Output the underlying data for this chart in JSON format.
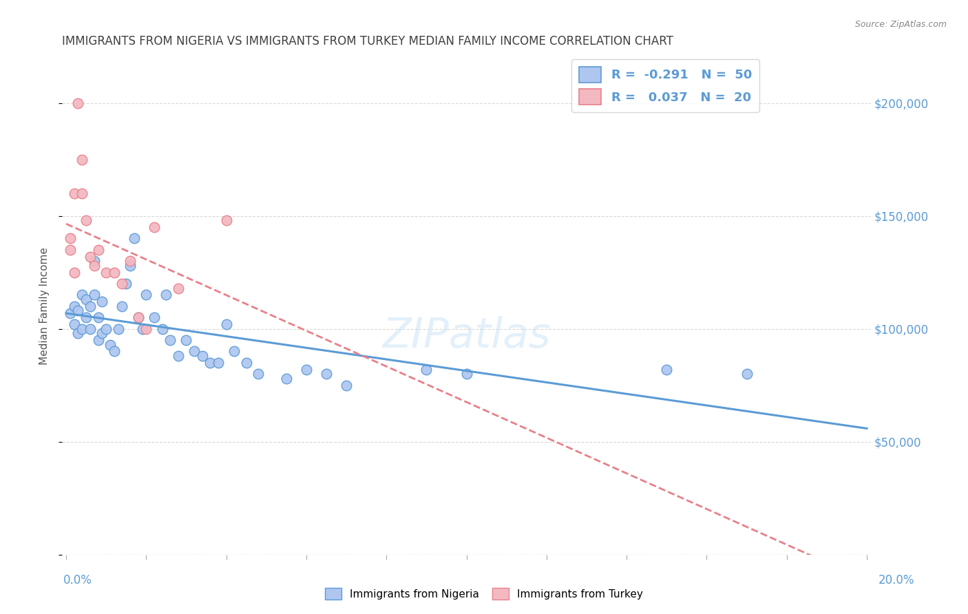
{
  "title": "IMMIGRANTS FROM NIGERIA VS IMMIGRANTS FROM TURKEY MEDIAN FAMILY INCOME CORRELATION CHART",
  "source": "Source: ZipAtlas.com",
  "ylabel": "Median Family Income",
  "watermark": "ZIPatlas",
  "nigeria": {
    "color_face": "#aec6f0",
    "color_edge": "#5b9bd5",
    "R": -0.291,
    "N": 50,
    "x": [
      0.001,
      0.002,
      0.002,
      0.003,
      0.003,
      0.004,
      0.004,
      0.005,
      0.005,
      0.006,
      0.006,
      0.007,
      0.007,
      0.008,
      0.008,
      0.009,
      0.009,
      0.01,
      0.011,
      0.012,
      0.013,
      0.014,
      0.015,
      0.016,
      0.017,
      0.018,
      0.019,
      0.02,
      0.022,
      0.024,
      0.025,
      0.026,
      0.028,
      0.03,
      0.032,
      0.034,
      0.036,
      0.038,
      0.04,
      0.042,
      0.045,
      0.048,
      0.055,
      0.06,
      0.065,
      0.07,
      0.09,
      0.1,
      0.15,
      0.17
    ],
    "y": [
      107000,
      110000,
      102000,
      108000,
      98000,
      115000,
      100000,
      113000,
      105000,
      110000,
      100000,
      115000,
      130000,
      105000,
      95000,
      112000,
      98000,
      100000,
      93000,
      90000,
      100000,
      110000,
      120000,
      128000,
      140000,
      105000,
      100000,
      115000,
      105000,
      100000,
      115000,
      95000,
      88000,
      95000,
      90000,
      88000,
      85000,
      85000,
      102000,
      90000,
      85000,
      80000,
      78000,
      82000,
      80000,
      75000,
      82000,
      80000,
      82000,
      80000
    ]
  },
  "turkey": {
    "color_face": "#f4b8c1",
    "color_edge": "#e8808a",
    "R": 0.037,
    "N": 20,
    "x": [
      0.001,
      0.001,
      0.002,
      0.002,
      0.003,
      0.004,
      0.004,
      0.005,
      0.006,
      0.007,
      0.008,
      0.01,
      0.012,
      0.014,
      0.016,
      0.018,
      0.02,
      0.022,
      0.028,
      0.04
    ],
    "y": [
      140000,
      135000,
      160000,
      125000,
      200000,
      175000,
      160000,
      148000,
      132000,
      128000,
      135000,
      125000,
      125000,
      120000,
      130000,
      105000,
      100000,
      145000,
      118000,
      148000
    ]
  },
  "ylim": [
    0,
    220000
  ],
  "xlim": [
    -0.001,
    0.201
  ],
  "yticks": [
    0,
    50000,
    100000,
    150000,
    200000
  ],
  "ytick_labels": [
    "",
    "$50,000",
    "$100,000",
    "$150,000",
    "$200,000"
  ],
  "background_color": "#ffffff",
  "grid_color": "#d8d8d8",
  "title_color": "#404040",
  "axis_label_color": "#5b9bd5",
  "right_ytick_color": "#5b9bd5",
  "legend_R_nigeria": "R = -0.291",
  "legend_N_nigeria": "N = 50",
  "legend_R_turkey": "R =  0.037",
  "legend_N_turkey": "N = 20"
}
